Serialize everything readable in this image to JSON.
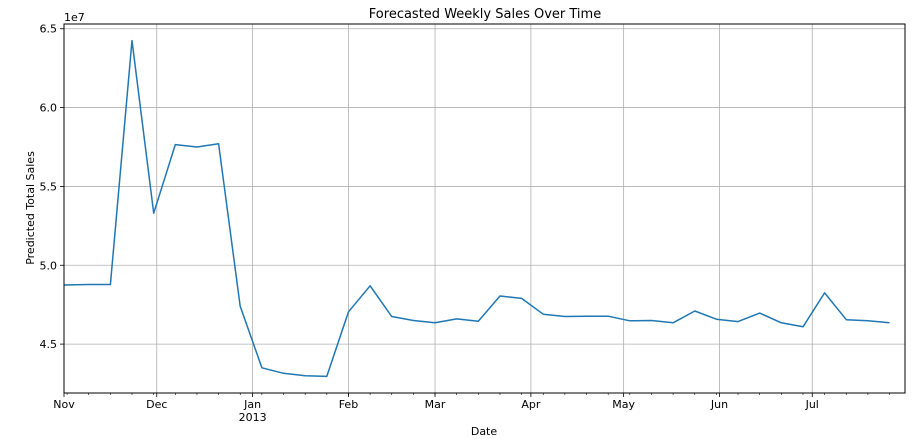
{
  "chart_data": {
    "type": "line",
    "title": "Forecasted Weekly Sales Over Time",
    "xlabel": "Date",
    "ylabel": "Predicted Total Sales",
    "y_scale_label": "1e7",
    "xlim": [
      "2012-11-01",
      "2013-07-31"
    ],
    "ylim": [
      4.19,
      6.53
    ],
    "grid": true,
    "line_color": "#1f77b4",
    "x_ticks": [
      {
        "date": "2012-11-01",
        "label": "Nov",
        "sublabel": ""
      },
      {
        "date": "2012-12-01",
        "label": "Dec",
        "sublabel": ""
      },
      {
        "date": "2013-01-01",
        "label": "Jan",
        "sublabel": "2013"
      },
      {
        "date": "2013-02-01",
        "label": "Feb",
        "sublabel": ""
      },
      {
        "date": "2013-03-01",
        "label": "Mar",
        "sublabel": ""
      },
      {
        "date": "2013-04-01",
        "label": "Apr",
        "sublabel": ""
      },
      {
        "date": "2013-05-01",
        "label": "May",
        "sublabel": ""
      },
      {
        "date": "2013-06-01",
        "label": "Jun",
        "sublabel": ""
      },
      {
        "date": "2013-07-01",
        "label": "Jul",
        "sublabel": ""
      }
    ],
    "y_ticks": [
      {
        "value": 4.5,
        "label": "4.5"
      },
      {
        "value": 5.0,
        "label": "5.0"
      },
      {
        "value": 5.5,
        "label": "5.5"
      },
      {
        "value": 6.0,
        "label": "6.0"
      },
      {
        "value": 6.5,
        "label": "6.5"
      }
    ],
    "series": [
      {
        "points": [
          {
            "x": "2012-11-01",
            "y": 4.875
          },
          {
            "x": "2012-11-09",
            "y": 4.878
          },
          {
            "x": "2012-11-16",
            "y": 4.878
          },
          {
            "x": "2012-11-23",
            "y": 6.425
          },
          {
            "x": "2012-11-30",
            "y": 5.33
          },
          {
            "x": "2012-12-07",
            "y": 5.765
          },
          {
            "x": "2012-12-14",
            "y": 5.75
          },
          {
            "x": "2012-12-21",
            "y": 5.77
          },
          {
            "x": "2012-12-28",
            "y": 4.74
          },
          {
            "x": "2013-01-04",
            "y": 4.35
          },
          {
            "x": "2013-01-11",
            "y": 4.315
          },
          {
            "x": "2013-01-18",
            "y": 4.3
          },
          {
            "x": "2013-01-25",
            "y": 4.295
          },
          {
            "x": "2013-02-01",
            "y": 4.705
          },
          {
            "x": "2013-02-08",
            "y": 4.87
          },
          {
            "x": "2013-02-15",
            "y": 4.675
          },
          {
            "x": "2013-02-22",
            "y": 4.65
          },
          {
            "x": "2013-03-01",
            "y": 4.635
          },
          {
            "x": "2013-03-08",
            "y": 4.66
          },
          {
            "x": "2013-03-15",
            "y": 4.645
          },
          {
            "x": "2013-03-22",
            "y": 4.805
          },
          {
            "x": "2013-03-29",
            "y": 4.79
          },
          {
            "x": "2013-04-05",
            "y": 4.69
          },
          {
            "x": "2013-04-12",
            "y": 4.675
          },
          {
            "x": "2013-04-19",
            "y": 4.677
          },
          {
            "x": "2013-04-26",
            "y": 4.677
          },
          {
            "x": "2013-05-03",
            "y": 4.648
          },
          {
            "x": "2013-05-10",
            "y": 4.65
          },
          {
            "x": "2013-05-17",
            "y": 4.635
          },
          {
            "x": "2013-05-24",
            "y": 4.71
          },
          {
            "x": "2013-05-31",
            "y": 4.658
          },
          {
            "x": "2013-06-07",
            "y": 4.643
          },
          {
            "x": "2013-06-14",
            "y": 4.697
          },
          {
            "x": "2013-06-21",
            "y": 4.635
          },
          {
            "x": "2013-06-28",
            "y": 4.61
          },
          {
            "x": "2013-07-05",
            "y": 4.825
          },
          {
            "x": "2013-07-12",
            "y": 4.655
          },
          {
            "x": "2013-07-19",
            "y": 4.648
          },
          {
            "x": "2013-07-26",
            "y": 4.635
          }
        ]
      }
    ]
  }
}
